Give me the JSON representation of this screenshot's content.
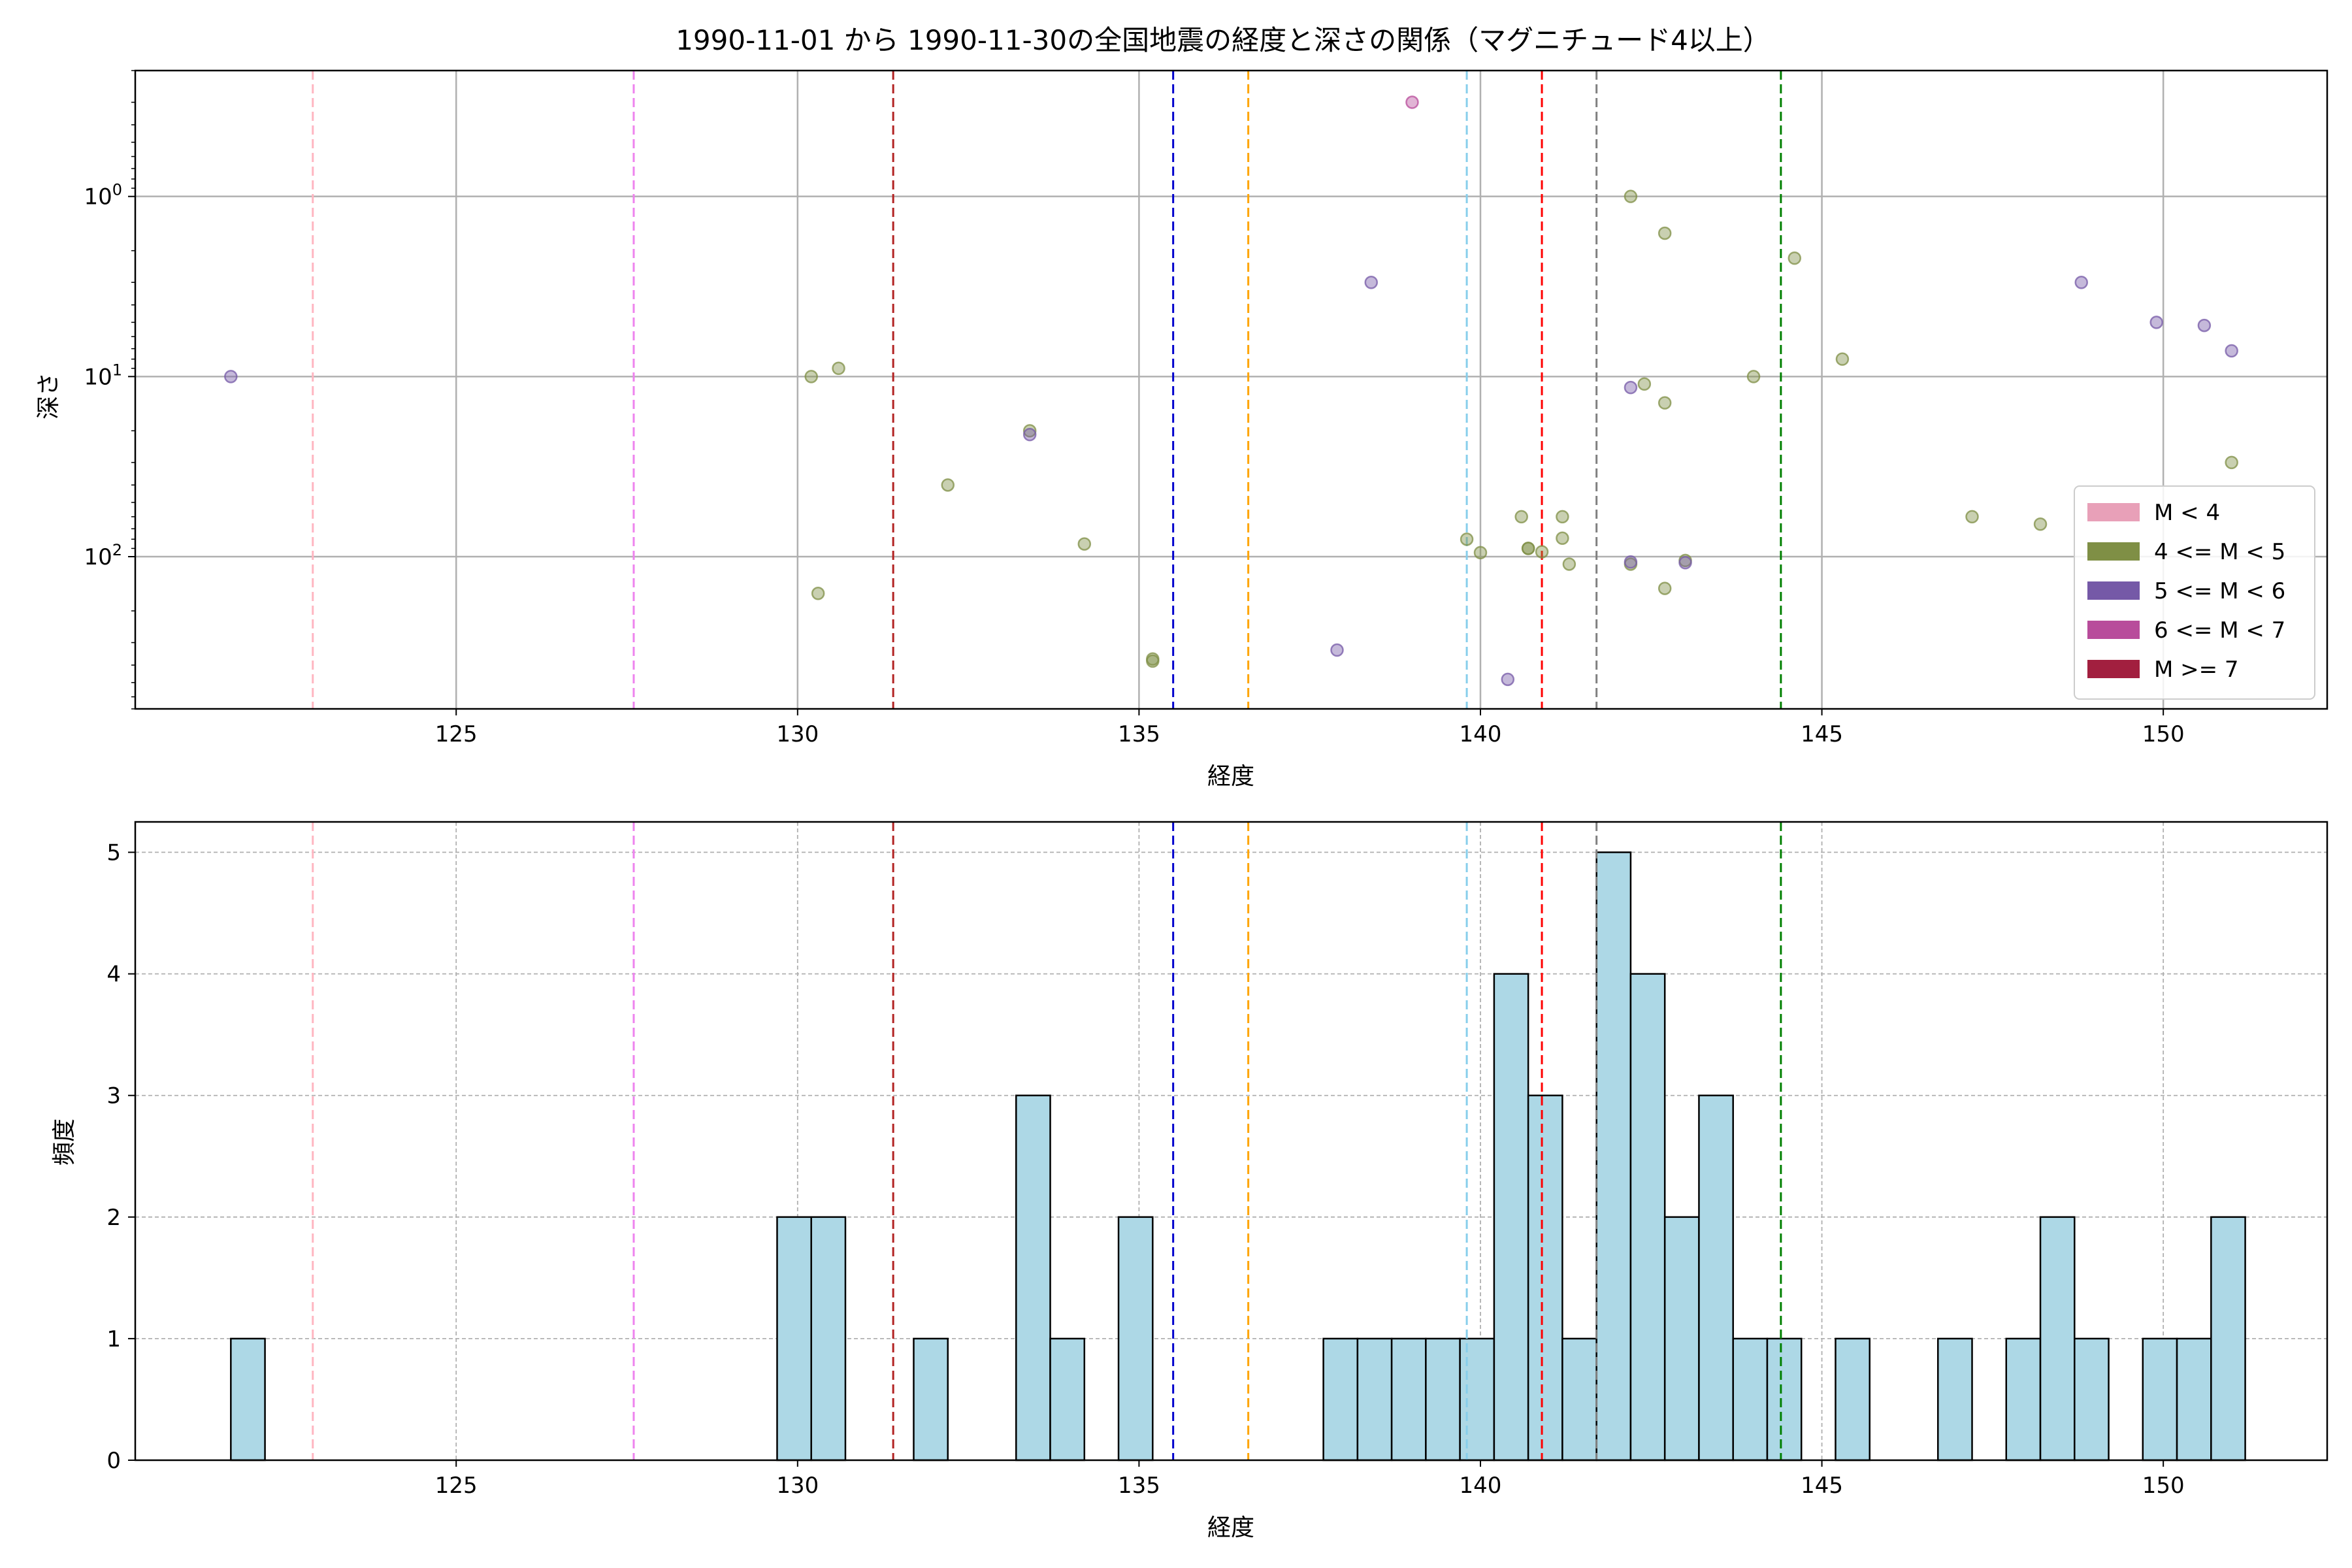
{
  "chart_data": [
    {
      "type": "scatter",
      "title": "1990-11-01 から 1990-11-30の全国地震の経度と深さの関係（マグニチュード4以上）",
      "xlabel": "経度",
      "ylabel": "深さ",
      "xlim": [
        120.3,
        152.4
      ],
      "ylim": [
        700,
        0.2
      ],
      "y_scale": "log",
      "y_inverted": true,
      "grid": true,
      "x_ticks": [
        125,
        130,
        135,
        140,
        145,
        150
      ],
      "y_ticks": [
        {
          "value": 1,
          "label": "10^0"
        },
        {
          "value": 10,
          "label": "10^1"
        },
        {
          "value": 100,
          "label": "10^2"
        }
      ],
      "legend_position": "lower-right",
      "legend": [
        {
          "label": "M < 4",
          "color": "#e8a0b8"
        },
        {
          "label": "4 <= M < 5",
          "color": "#7f8f45"
        },
        {
          "label": "5 <= M < 6",
          "color": "#7559a7"
        },
        {
          "label": "6 <= M < 7",
          "color": "#b84c9b"
        },
        {
          "label": "M >= 7",
          "color": "#a21f3f"
        }
      ],
      "vlines": [
        {
          "x": 122.9,
          "color": "#ffb6c1"
        },
        {
          "x": 127.6,
          "color": "#ee82ee"
        },
        {
          "x": 131.4,
          "color": "#b22222"
        },
        {
          "x": 135.5,
          "color": "#0000cd"
        },
        {
          "x": 136.6,
          "color": "#ffa500"
        },
        {
          "x": 139.8,
          "color": "#87ceeb"
        },
        {
          "x": 140.9,
          "color": "#ff0000"
        },
        {
          "x": 141.7,
          "color": "#808080"
        },
        {
          "x": 144.4,
          "color": "#008000"
        }
      ],
      "series": [
        {
          "name": "4 <= M < 5",
          "color": "#7f8f45",
          "points": [
            [
              130.2,
              10
            ],
            [
              130.3,
              160
            ],
            [
              130.6,
              9
            ],
            [
              132.2,
              40
            ],
            [
              133.4,
              20
            ],
            [
              134.2,
              85
            ],
            [
              135.2,
              380
            ],
            [
              135.2,
              370
            ],
            [
              139.8,
              80
            ],
            [
              140.0,
              95
            ],
            [
              140.6,
              60
            ],
            [
              140.7,
              90
            ],
            [
              140.7,
              90
            ],
            [
              140.9,
              94
            ],
            [
              141.2,
              60
            ],
            [
              141.2,
              79
            ],
            [
              141.3,
              110
            ],
            [
              142.2,
              1
            ],
            [
              142.2,
              110
            ],
            [
              142.4,
              11
            ],
            [
              142.7,
              1.6
            ],
            [
              142.7,
              14
            ],
            [
              142.7,
              150
            ],
            [
              143.0,
              105
            ],
            [
              144.0,
              10
            ],
            [
              144.6,
              2.2
            ],
            [
              145.3,
              8
            ],
            [
              147.2,
              60
            ],
            [
              148.2,
              66
            ],
            [
              151.0,
              30
            ]
          ]
        },
        {
          "name": "5 <= M < 6",
          "color": "#7559a7",
          "points": [
            [
              121.7,
              10
            ],
            [
              133.4,
              21
            ],
            [
              137.9,
              330
            ],
            [
              138.4,
              3
            ],
            [
              140.4,
              480
            ],
            [
              142.2,
              11.5
            ],
            [
              142.2,
              107
            ],
            [
              143.0,
              108
            ],
            [
              148.8,
              3
            ],
            [
              149.9,
              5
            ],
            [
              150.6,
              5.2
            ],
            [
              151.0,
              7.2
            ]
          ]
        },
        {
          "name": "6 <= M < 7",
          "color": "#b84c9b",
          "points": [
            [
              139.0,
              0.3
            ]
          ]
        }
      ]
    },
    {
      "type": "bar",
      "subtype": "histogram",
      "xlabel": "経度",
      "ylabel": "頻度",
      "xlim": [
        120.3,
        152.4
      ],
      "ylim": [
        0,
        5.25
      ],
      "grid": true,
      "x_ticks": [
        125,
        130,
        135,
        140,
        145,
        150
      ],
      "y_ticks": [
        0,
        1,
        2,
        3,
        4,
        5
      ],
      "bar_color": "#add8e6",
      "edge_color": "#000000",
      "bin_start": 121.7,
      "bin_width": 0.5,
      "bins": [
        {
          "x": 121.7,
          "count": 1
        },
        {
          "x": 129.7,
          "count": 2
        },
        {
          "x": 130.2,
          "count": 2
        },
        {
          "x": 131.7,
          "count": 1
        },
        {
          "x": 133.2,
          "count": 3
        },
        {
          "x": 133.7,
          "count": 1
        },
        {
          "x": 134.7,
          "count": 2
        },
        {
          "x": 137.7,
          "count": 1
        },
        {
          "x": 138.2,
          "count": 1
        },
        {
          "x": 138.7,
          "count": 1
        },
        {
          "x": 139.2,
          "count": 1
        },
        {
          "x": 139.7,
          "count": 1
        },
        {
          "x": 140.2,
          "count": 4
        },
        {
          "x": 140.7,
          "count": 3
        },
        {
          "x": 141.2,
          "count": 1
        },
        {
          "x": 141.7,
          "count": 5
        },
        {
          "x": 142.2,
          "count": 4
        },
        {
          "x": 142.7,
          "count": 2
        },
        {
          "x": 143.2,
          "count": 3
        },
        {
          "x": 143.7,
          "count": 1
        },
        {
          "x": 144.2,
          "count": 1
        },
        {
          "x": 145.2,
          "count": 1
        },
        {
          "x": 146.7,
          "count": 1
        },
        {
          "x": 147.7,
          "count": 1
        },
        {
          "x": 148.2,
          "count": 2
        },
        {
          "x": 148.7,
          "count": 1
        },
        {
          "x": 149.7,
          "count": 1
        },
        {
          "x": 150.2,
          "count": 1
        },
        {
          "x": 150.7,
          "count": 2
        }
      ],
      "vlines": [
        {
          "x": 122.9,
          "color": "#ffb6c1"
        },
        {
          "x": 127.6,
          "color": "#ee82ee"
        },
        {
          "x": 131.4,
          "color": "#b22222"
        },
        {
          "x": 135.5,
          "color": "#0000cd"
        },
        {
          "x": 136.6,
          "color": "#ffa500"
        },
        {
          "x": 139.8,
          "color": "#87ceeb"
        },
        {
          "x": 140.9,
          "color": "#ff0000"
        },
        {
          "x": 141.7,
          "color": "#808080"
        },
        {
          "x": 144.4,
          "color": "#008000"
        }
      ]
    }
  ]
}
